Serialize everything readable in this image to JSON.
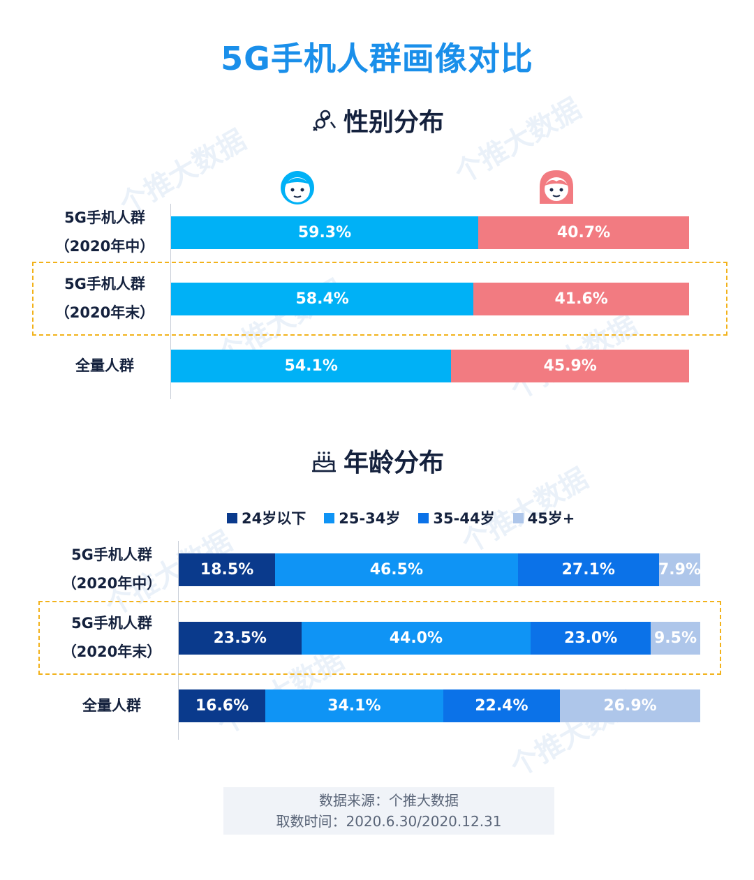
{
  "title": "5G手机人群画像对比",
  "watermark": "个推大数据",
  "gender_section": {
    "title": "性别分布",
    "icon": "gender-icon"
  },
  "age_section": {
    "title": "年龄分布",
    "icon": "cake-icon"
  },
  "source": {
    "line1": "数据来源：个推大数据",
    "line2": "取数时间：2020.6.30/2020.12.31"
  },
  "colors": {
    "male": "#00b1f6",
    "female": "#f27b81",
    "age_24_below": "#0a3a8c",
    "age_25_34": "#0f94f5",
    "age_35_44": "#0b72e8",
    "age_45_plus": "#aec6ea",
    "title": "#1a8fea",
    "highlight": "#f2b21b"
  },
  "chart_data": [
    {
      "type": "bar",
      "stacked": true,
      "orientation": "horizontal",
      "normalized": true,
      "title": "性别分布",
      "categories": [
        [
          "5G手机人群",
          "（2020年中）"
        ],
        [
          "5G手机人群",
          "（2020年末）"
        ],
        [
          "全量人群"
        ]
      ],
      "highlight_index": 1,
      "series": [
        {
          "icon": "boy-face-icon",
          "values": [
            59.3,
            58.4,
            54.1
          ],
          "labels": [
            "59.3%",
            "58.4%",
            "54.1%"
          ]
        },
        {
          "icon": "girl-face-icon",
          "values": [
            40.7,
            41.6,
            45.9
          ],
          "labels": [
            "40.7%",
            "41.6%",
            "45.9%"
          ]
        }
      ]
    },
    {
      "type": "bar",
      "stacked": true,
      "orientation": "horizontal",
      "normalized": true,
      "title": "年龄分布",
      "categories": [
        [
          "5G手机人群",
          "（2020年中）"
        ],
        [
          "5G手机人群",
          "（2020年末）"
        ],
        [
          "全量人群"
        ]
      ],
      "highlight_index": 1,
      "legend_position": "top",
      "series": [
        {
          "name": "24岁以下",
          "values": [
            18.5,
            23.5,
            16.6
          ],
          "labels": [
            "18.5%",
            "23.5%",
            "16.6%"
          ]
        },
        {
          "name": "25-34岁",
          "values": [
            46.5,
            44.0,
            34.1
          ],
          "labels": [
            "46.5%",
            "44.0%",
            "34.1%"
          ]
        },
        {
          "name": "35-44岁",
          "values": [
            27.1,
            23.0,
            22.4
          ],
          "labels": [
            "27.1%",
            "23.0%",
            "22.4%"
          ]
        },
        {
          "name": "45岁+",
          "values": [
            7.9,
            9.5,
            26.9
          ],
          "labels": [
            "7.9%",
            "9.5%",
            "26.9%"
          ]
        }
      ]
    }
  ]
}
